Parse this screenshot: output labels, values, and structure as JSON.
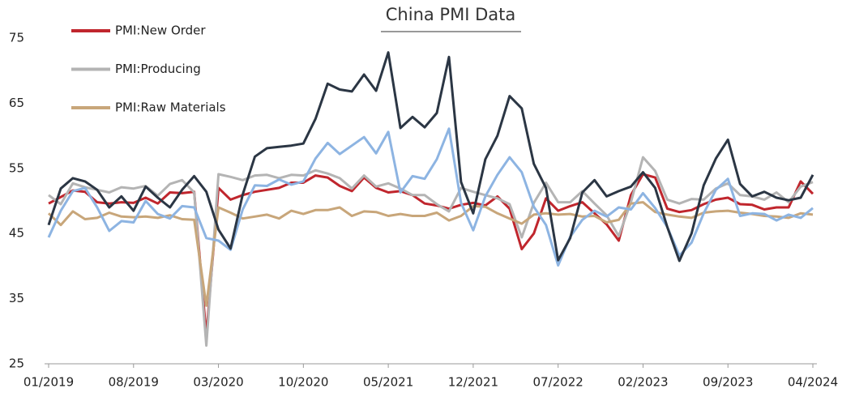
{
  "chart_data": {
    "type": "line",
    "title": "China PMI Data",
    "categories": [
      "01/2019",
      null,
      null,
      null,
      null,
      null,
      null,
      "08/2019",
      null,
      null,
      null,
      null,
      null,
      null,
      "03/2020",
      null,
      null,
      null,
      null,
      null,
      null,
      "10/2020",
      null,
      null,
      null,
      null,
      null,
      null,
      "05/2021",
      null,
      null,
      null,
      null,
      null,
      null,
      "12/2021",
      null,
      null,
      null,
      null,
      null,
      null,
      "07/2022",
      null,
      null,
      null,
      null,
      null,
      null,
      "02/2023",
      null,
      null,
      null,
      null,
      null,
      null,
      "09/2023",
      null,
      null,
      null,
      null,
      null,
      null,
      "04/2024"
    ],
    "series": [
      {
        "name": "PMI:New Order",
        "color": "#c0262d",
        "values": [
          49.6,
          50.6,
          51.6,
          51.4,
          49.8,
          49.6,
          49.8,
          49.7,
          50.5,
          49.6,
          51.3,
          51.2,
          51.4,
          29.3,
          52.0,
          50.2,
          50.9,
          51.4,
          51.7,
          52.0,
          52.8,
          52.8,
          53.9,
          53.6,
          52.3,
          51.5,
          53.6,
          52.0,
          51.3,
          51.5,
          50.9,
          49.6,
          49.3,
          48.8,
          49.4,
          49.7,
          49.3,
          50.7,
          48.8,
          42.6,
          45.0,
          50.4,
          48.5,
          49.2,
          49.8,
          48.1,
          46.4,
          43.9,
          50.9,
          54.1,
          53.6,
          48.8,
          48.3,
          48.6,
          49.5,
          50.2,
          50.5,
          49.5,
          49.4,
          48.7,
          49.0,
          49.0,
          53.0,
          51.1
        ]
      },
      {
        "name": "PMI:Producing",
        "color": "#b4b4b4",
        "values": [
          50.9,
          49.5,
          52.7,
          52.1,
          51.7,
          51.3,
          52.1,
          51.9,
          52.3,
          50.8,
          52.6,
          53.2,
          51.3,
          27.8,
          54.1,
          53.7,
          53.2,
          53.9,
          54.0,
          53.5,
          54.0,
          53.9,
          54.7,
          54.2,
          53.5,
          51.9,
          53.9,
          52.2,
          52.7,
          51.9,
          50.9,
          50.9,
          49.5,
          48.4,
          52.0,
          51.4,
          50.9,
          50.4,
          49.5,
          44.4,
          49.7,
          52.8,
          49.8,
          49.8,
          51.5,
          49.6,
          47.8,
          44.6,
          49.8,
          56.7,
          54.6,
          50.2,
          49.6,
          50.3,
          50.2,
          51.9,
          52.7,
          50.9,
          50.7,
          50.2,
          51.3,
          49.8,
          52.2,
          52.9
        ]
      },
      {
        "name": "PMI:Raw Materials",
        "color": "#c8a67a",
        "values": [
          48.1,
          46.3,
          48.4,
          47.2,
          47.4,
          48.2,
          47.6,
          47.5,
          47.6,
          47.4,
          47.8,
          47.2,
          47.1,
          33.9,
          49.0,
          48.2,
          47.3,
          47.6,
          47.9,
          47.3,
          48.5,
          48.0,
          48.6,
          48.6,
          49.0,
          47.7,
          48.4,
          48.3,
          47.7,
          48.0,
          47.7,
          47.7,
          48.2,
          47.0,
          47.7,
          49.2,
          49.1,
          48.1,
          47.3,
          46.5,
          47.9,
          48.1,
          47.9,
          48.0,
          47.6,
          47.7,
          46.7,
          47.1,
          49.6,
          49.8,
          48.3,
          47.9,
          47.6,
          47.4,
          48.2,
          48.4,
          48.5,
          48.2,
          48.0,
          47.7,
          47.6,
          47.4,
          48.1,
          47.9
        ]
      },
      {
        "color": "#8db4e2",
        "values": [
          44.4,
          48.5,
          51.5,
          52.0,
          49.0,
          45.4,
          46.9,
          46.7,
          50.0,
          48.0,
          47.3,
          49.2,
          49.0,
          44.3,
          43.9,
          42.5,
          48.7,
          52.4,
          52.3,
          53.3,
          52.5,
          53.0,
          56.5,
          58.9,
          57.2,
          58.5,
          59.8,
          57.3,
          60.6,
          51.3,
          53.8,
          53.4,
          56.4,
          61.1,
          49.7,
          45.5,
          50.7,
          54.0,
          56.7,
          54.4,
          49.1,
          46.3,
          40.1,
          44.5,
          47.1,
          48.5,
          47.6,
          49.0,
          48.7,
          51.2,
          48.9,
          46.0,
          41.6,
          43.6,
          48.1,
          51.7,
          53.4,
          47.7,
          48.1,
          48.0,
          47.0,
          47.9,
          47.4,
          48.9
        ]
      },
      {
        "color": "#2b3644",
        "values": [
          46.3,
          51.9,
          53.5,
          53.0,
          51.7,
          49.0,
          50.7,
          48.5,
          52.2,
          50.5,
          49.0,
          51.7,
          53.8,
          51.4,
          45.6,
          42.7,
          51.0,
          56.8,
          58.1,
          58.3,
          58.5,
          58.8,
          62.6,
          68.0,
          67.1,
          66.8,
          69.4,
          66.9,
          72.8,
          61.2,
          62.9,
          61.3,
          63.5,
          72.1,
          52.9,
          48.1,
          56.4,
          60.0,
          66.1,
          64.2,
          55.7,
          52.0,
          40.9,
          44.3,
          51.3,
          53.2,
          50.7,
          51.5,
          52.2,
          54.4,
          52.0,
          46.0,
          40.8,
          45.0,
          52.4,
          56.5,
          59.4,
          52.6,
          50.7,
          51.4,
          50.5,
          50.1,
          50.5,
          54.0
        ]
      }
    ],
    "ylim": [
      25,
      75
    ],
    "yticks": [
      25,
      35,
      45,
      55,
      65,
      75
    ],
    "grid": false,
    "legend": "top-left"
  }
}
